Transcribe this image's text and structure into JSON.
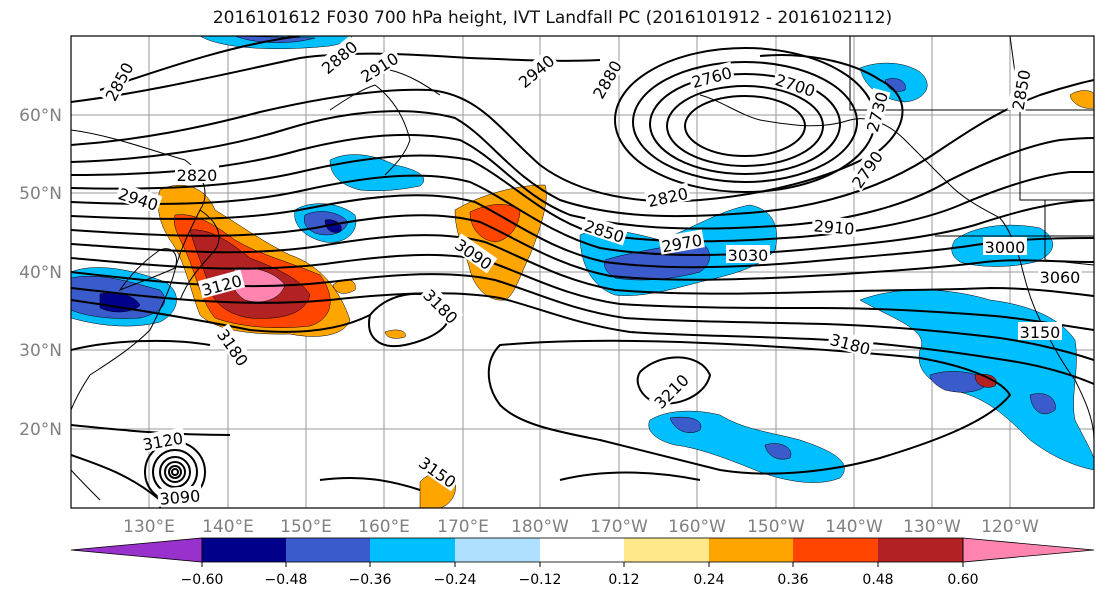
{
  "title": "2016101612 F030 700 hPa height, IVT Landfall PC (2016101912 - 2016102112)",
  "map": {
    "lon_labels": [
      "130°E",
      "140°E",
      "150°E",
      "160°E",
      "170°E",
      "180°W",
      "170°W",
      "160°W",
      "150°W",
      "140°W",
      "130°W",
      "120°W"
    ],
    "lat_labels": [
      "60°N",
      "50°N",
      "40°N",
      "30°N",
      "20°N"
    ],
    "contour_labels": [
      "2850",
      "2880",
      "2910",
      "2940",
      "2880",
      "2760",
      "2700",
      "2730",
      "2850",
      "2820",
      "2940",
      "3120",
      "3180",
      "2850",
      "2970",
      "3030",
      "2820",
      "3090",
      "2910",
      "3000",
      "3060",
      "3180",
      "3150",
      "3180",
      "3210",
      "3120",
      "3090",
      "3150",
      "2790"
    ]
  },
  "colorbar": {
    "ticks": [
      "−0.60",
      "−0.48",
      "−0.36",
      "−0.24",
      "−0.12",
      "0.12",
      "0.24",
      "0.36",
      "0.48",
      "0.60"
    ],
    "colors": [
      "#9932CC",
      "#00008B",
      "#3A5BCB",
      "#00BFFF",
      "#B0E0FF",
      "#FFFFFF",
      "#FFE88A",
      "#FFA500",
      "#FF4500",
      "#B22222",
      "#FF85B0"
    ]
  }
}
